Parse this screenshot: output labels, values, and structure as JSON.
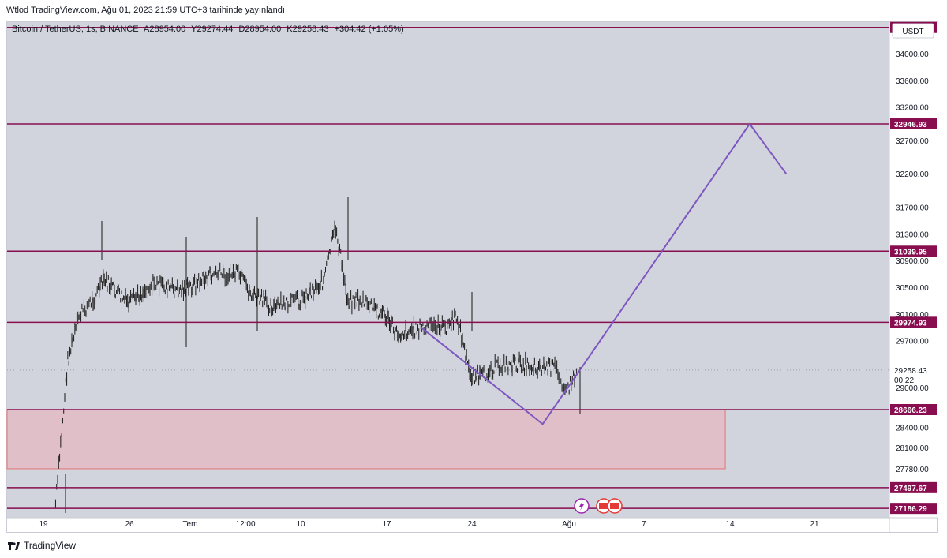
{
  "header": {
    "publish_line": "Wtlod TradingView.com, Ağu 01, 2023 21:59 UTC+3 tarihinde yayınlandı"
  },
  "legend": {
    "symbol": "Bitcoin / TetherUS, 1s, BINANCE",
    "open": "A28954.00",
    "high": "Y29274.44",
    "low": "D28954.00",
    "close": "K29258.43",
    "change": "+304.42 (+1.05%)"
  },
  "footer": {
    "brand": "TradingView"
  },
  "colors": {
    "background": "#d1d4dc",
    "level_line": "#880e4f",
    "level_label_bg": "#880e4f",
    "projection": "#7e57c2",
    "zone_fill": "#f4a7b0",
    "candle": "#1a1a1a",
    "event_purple": "#9c27b0",
    "event_red": "#e53935"
  },
  "chart_data": {
    "type": "line",
    "currency_button": "USDT",
    "x_ticks": [
      "19",
      "26",
      "Tem",
      "12:00",
      "10",
      "17",
      "24",
      "Ağu",
      "7",
      "14",
      "21"
    ],
    "y_ticks": [
      "34000.00",
      "33600.00",
      "33200.00",
      "32700.00",
      "32200.00",
      "31700.00",
      "31300.00",
      "30900.00",
      "30500.00",
      "30100.00",
      "29700.00",
      "29000.00",
      "28400.00",
      "28100.00",
      "27780.00"
    ],
    "ylim": [
      27180,
      34450
    ],
    "levels": [
      {
        "value": 34392.79,
        "label": "34392.79"
      },
      {
        "value": 32946.93,
        "label": "32946.93"
      },
      {
        "value": 31039.95,
        "label": "31039.95"
      },
      {
        "value": 29974.93,
        "label": "29974.93"
      },
      {
        "value": 28666.23,
        "label": "28666.23"
      },
      {
        "value": 27497.67,
        "label": "27497.67"
      },
      {
        "value": 27186.29,
        "label": "27186.29"
      }
    ],
    "last_price": {
      "value": 29258.43,
      "label": "29258.43",
      "timer": "00:22"
    },
    "zone": {
      "x_start": "2023-06-19",
      "x_end": "2023-08-14",
      "top": 28666.23,
      "bottom": 27780
    },
    "projection_path": [
      {
        "x": "2023-07-20",
        "y": 29900
      },
      {
        "x": "2023-07-30",
        "y": 28450
      },
      {
        "x": "2023-08-16",
        "y": 32946.93
      },
      {
        "x": "2023-08-19",
        "y": 32200
      }
    ],
    "price_path": [
      {
        "x": "2023-06-20",
        "y": 27250
      },
      {
        "x": "2023-06-21",
        "y": 29400
      },
      {
        "x": "2023-06-22",
        "y": 30100
      },
      {
        "x": "2023-06-23",
        "y": 30300
      },
      {
        "x": "2023-06-24",
        "y": 30600
      },
      {
        "x": "2023-06-26",
        "y": 30250
      },
      {
        "x": "2023-06-28",
        "y": 30550
      },
      {
        "x": "2023-06-30",
        "y": 30450
      },
      {
        "x": "2023-07-01",
        "y": 30500
      },
      {
        "x": "2023-07-03",
        "y": 30700
      },
      {
        "x": "2023-07-05",
        "y": 30700
      },
      {
        "x": "2023-07-06",
        "y": 30400
      },
      {
        "x": "2023-07-08",
        "y": 30200
      },
      {
        "x": "2023-07-10",
        "y": 30300
      },
      {
        "x": "2023-07-12",
        "y": 30600
      },
      {
        "x": "2023-07-13",
        "y": 31400
      },
      {
        "x": "2023-07-14",
        "y": 30300
      },
      {
        "x": "2023-07-15",
        "y": 30300
      },
      {
        "x": "2023-07-17",
        "y": 30100
      },
      {
        "x": "2023-07-18",
        "y": 29800
      },
      {
        "x": "2023-07-20",
        "y": 29900
      },
      {
        "x": "2023-07-22",
        "y": 29900
      },
      {
        "x": "2023-07-23",
        "y": 30050
      },
      {
        "x": "2023-07-24",
        "y": 29200
      },
      {
        "x": "2023-07-25",
        "y": 29150
      },
      {
        "x": "2023-07-26",
        "y": 29300
      },
      {
        "x": "2023-07-28",
        "y": 29350
      },
      {
        "x": "2023-07-30",
        "y": 29300
      },
      {
        "x": "2023-07-31",
        "y": 29300
      },
      {
        "x": "2023-08-01",
        "y": 28950
      },
      {
        "x": "2023-08-01T21:00",
        "y": 29258.43
      }
    ]
  }
}
